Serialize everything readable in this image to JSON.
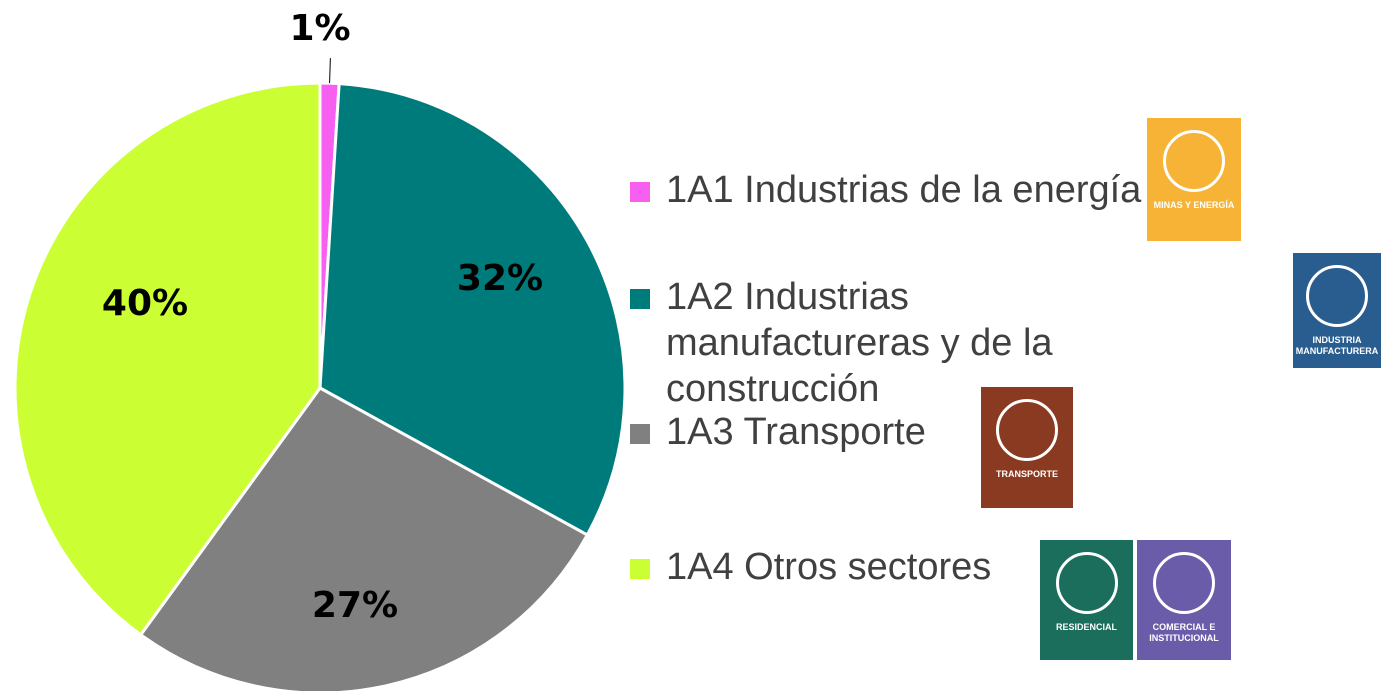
{
  "chart_data": {
    "type": "pie",
    "series": [
      {
        "name": "1A1   Industrias de la energía",
        "color": "#f75ff0"
      },
      {
        "name": "1A2   Industrias manufactureras y de la construcción",
        "color": "#007b7b"
      },
      {
        "name": "1A3   Transporte",
        "color": "#808080"
      },
      {
        "name": "1A4   Otros sectores",
        "color": "#ccff33"
      }
    ],
    "values": [
      1,
      32,
      27,
      40
    ],
    "value_labels": [
      "1%",
      "32%",
      "27%",
      "40%"
    ]
  },
  "icons": [
    {
      "label": "MINAS Y ENERGÍA",
      "color": "#f6b336"
    },
    {
      "label": "INDUSTRIA MANUFACTURERA",
      "color": "#2a5d8f"
    },
    {
      "label": "TRANSPORTE",
      "color": "#8b3a22"
    },
    {
      "label": "RESIDENCIAL",
      "color": "#1a6e5b"
    },
    {
      "label": "COMERCIAL E INSTITUCIONAL",
      "color": "#6a5ca8"
    }
  ]
}
